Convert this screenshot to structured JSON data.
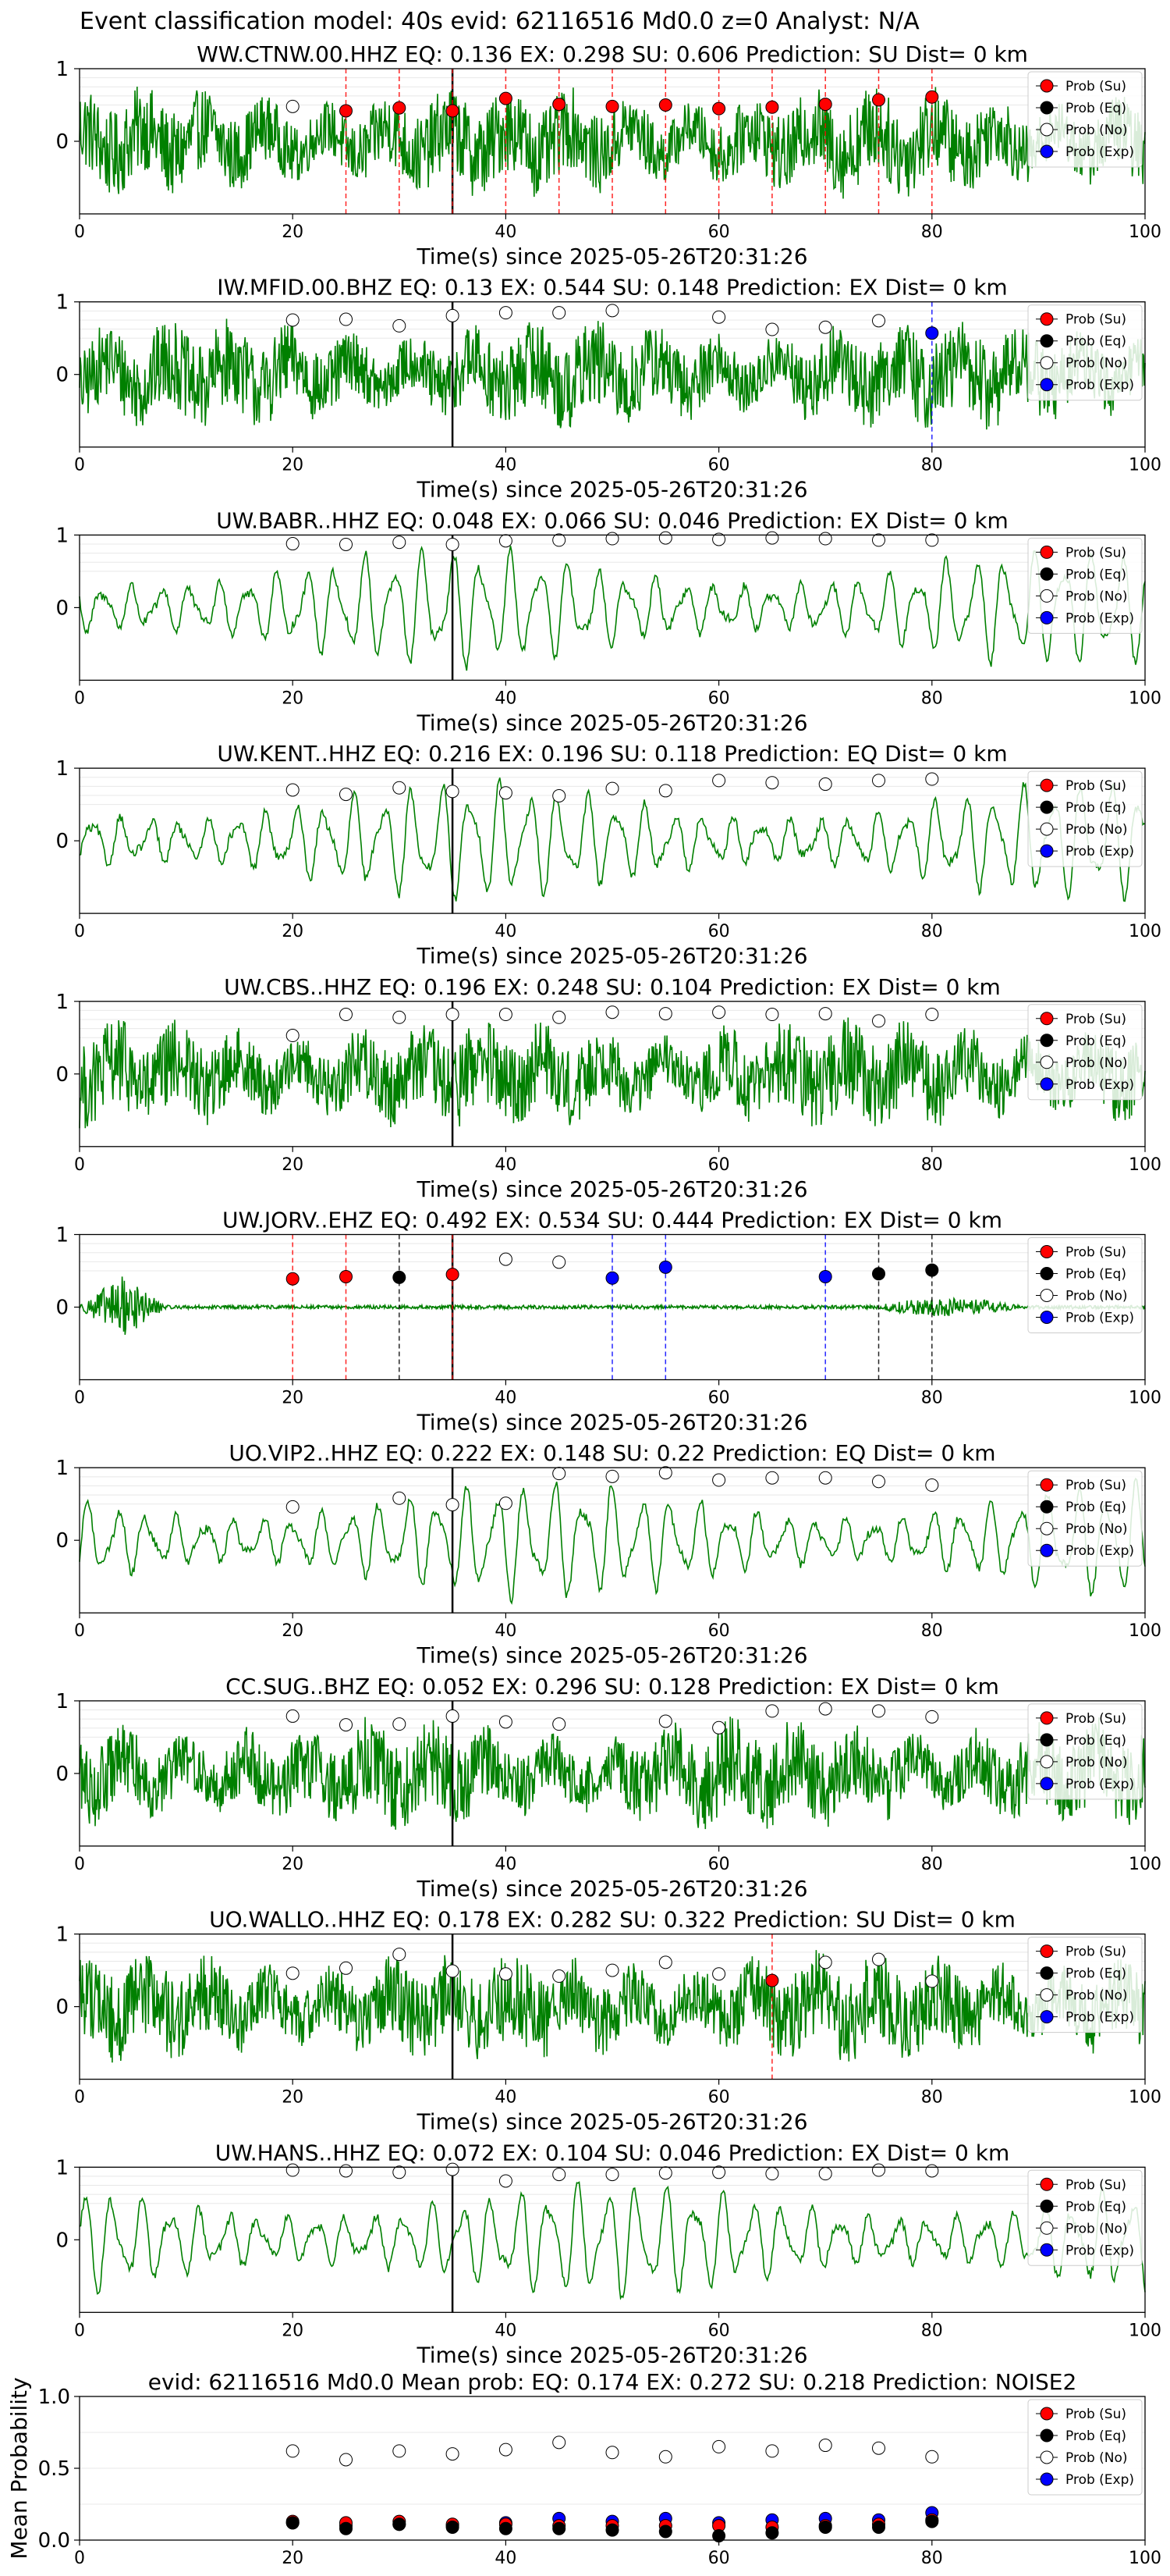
{
  "figure": {
    "suptitle": "Event classification model: 40s evid: 62116516 Md0.0 z=0 Analyst: N/A"
  },
  "legend_labels": [
    "Prob (Su)",
    "Prob (Eq)",
    "Prob (No)",
    "Prob (Exp)"
  ],
  "colors": {
    "waveform": "#008000",
    "su": "#ff0000",
    "eq": "#000000",
    "no": "#ffffff",
    "exp": "#0000ff",
    "su_line": "#ff0000",
    "eq_line": "#000000",
    "exp_line": "#0000ff"
  },
  "chart_data": [
    {
      "type": "line",
      "title": "WW.CTNW.00.HHZ   EQ: 0.136  EX: 0.298  SU: 0.606   Prediction: SU    Dist= 0 km",
      "xlabel": "Time(s) since 2025-05-26T20:31:26",
      "xlim": [
        0,
        100
      ],
      "xticks": [
        0,
        20,
        40,
        60,
        80,
        100
      ],
      "yticks": [
        0,
        1
      ],
      "ylim": [
        -1,
        1
      ],
      "grid": "y",
      "legend": "top-right",
      "pick_time": 35,
      "waveform_style": "noisy",
      "points": [
        {
          "t": 20,
          "cls": "no",
          "p": 0.48
        },
        {
          "t": 25,
          "cls": "su",
          "p": 0.42
        },
        {
          "t": 30,
          "cls": "su",
          "p": 0.46
        },
        {
          "t": 35,
          "cls": "su",
          "p": 0.42
        },
        {
          "t": 40,
          "cls": "su",
          "p": 0.59
        },
        {
          "t": 45,
          "cls": "su",
          "p": 0.51
        },
        {
          "t": 50,
          "cls": "su",
          "p": 0.48
        },
        {
          "t": 55,
          "cls": "su",
          "p": 0.5
        },
        {
          "t": 60,
          "cls": "su",
          "p": 0.45
        },
        {
          "t": 65,
          "cls": "su",
          "p": 0.47
        },
        {
          "t": 70,
          "cls": "su",
          "p": 0.51
        },
        {
          "t": 75,
          "cls": "su",
          "p": 0.57
        },
        {
          "t": 80,
          "cls": "su",
          "p": 0.61
        }
      ]
    },
    {
      "type": "line",
      "title": "IW.MFID.00.BHZ   EQ: 0.13  EX: 0.544  SU: 0.148   Prediction: EX    Dist= 0 km",
      "xlabel": "Time(s) since 2025-05-26T20:31:26",
      "xlim": [
        0,
        100
      ],
      "xticks": [
        0,
        20,
        40,
        60,
        80,
        100
      ],
      "yticks": [
        0,
        1
      ],
      "ylim": [
        -1,
        1
      ],
      "grid": "y",
      "legend": "top-right",
      "pick_time": 35,
      "waveform_style": "noisy",
      "points": [
        {
          "t": 20,
          "cls": "no",
          "p": 0.75
        },
        {
          "t": 25,
          "cls": "no",
          "p": 0.76
        },
        {
          "t": 30,
          "cls": "no",
          "p": 0.67
        },
        {
          "t": 35,
          "cls": "no",
          "p": 0.81
        },
        {
          "t": 40,
          "cls": "no",
          "p": 0.85
        },
        {
          "t": 45,
          "cls": "no",
          "p": 0.85
        },
        {
          "t": 50,
          "cls": "no",
          "p": 0.88
        },
        {
          "t": 60,
          "cls": "no",
          "p": 0.79
        },
        {
          "t": 65,
          "cls": "no",
          "p": 0.62
        },
        {
          "t": 70,
          "cls": "no",
          "p": 0.65
        },
        {
          "t": 75,
          "cls": "no",
          "p": 0.74
        },
        {
          "t": 80,
          "cls": "exp",
          "p": 0.57
        }
      ]
    },
    {
      "type": "line",
      "title": "UW.BABR..HHZ   EQ: 0.048  EX: 0.066  SU: 0.046   Prediction: EX    Dist= 0 km",
      "xlabel": "Time(s) since 2025-05-26T20:31:26",
      "xlim": [
        0,
        100
      ],
      "xticks": [
        0,
        20,
        40,
        60,
        80,
        100
      ],
      "yticks": [
        0,
        1
      ],
      "ylim": [
        -1,
        1
      ],
      "grid": "y",
      "legend": "top-right",
      "pick_time": 35,
      "waveform_style": "smooth",
      "points": [
        {
          "t": 20,
          "cls": "no",
          "p": 0.88
        },
        {
          "t": 25,
          "cls": "no",
          "p": 0.87
        },
        {
          "t": 30,
          "cls": "no",
          "p": 0.9
        },
        {
          "t": 35,
          "cls": "no",
          "p": 0.87
        },
        {
          "t": 40,
          "cls": "no",
          "p": 0.92
        },
        {
          "t": 45,
          "cls": "no",
          "p": 0.93
        },
        {
          "t": 50,
          "cls": "no",
          "p": 0.95
        },
        {
          "t": 55,
          "cls": "no",
          "p": 0.96
        },
        {
          "t": 60,
          "cls": "no",
          "p": 0.94
        },
        {
          "t": 65,
          "cls": "no",
          "p": 0.96
        },
        {
          "t": 70,
          "cls": "no",
          "p": 0.95
        },
        {
          "t": 75,
          "cls": "no",
          "p": 0.93
        },
        {
          "t": 80,
          "cls": "no",
          "p": 0.93
        }
      ]
    },
    {
      "type": "line",
      "title": "UW.KENT..HHZ   EQ: 0.216  EX: 0.196  SU: 0.118   Prediction: EQ    Dist= 0 km",
      "xlabel": "Time(s) since 2025-05-26T20:31:26",
      "xlim": [
        0,
        100
      ],
      "xticks": [
        0,
        20,
        40,
        60,
        80,
        100
      ],
      "yticks": [
        0,
        1
      ],
      "ylim": [
        -1,
        1
      ],
      "grid": "y",
      "legend": "top-right",
      "pick_time": 35,
      "waveform_style": "smooth",
      "points": [
        {
          "t": 20,
          "cls": "no",
          "p": 0.7
        },
        {
          "t": 25,
          "cls": "no",
          "p": 0.64
        },
        {
          "t": 30,
          "cls": "no",
          "p": 0.73
        },
        {
          "t": 35,
          "cls": "no",
          "p": 0.68
        },
        {
          "t": 40,
          "cls": "no",
          "p": 0.66
        },
        {
          "t": 45,
          "cls": "no",
          "p": 0.62
        },
        {
          "t": 50,
          "cls": "no",
          "p": 0.72
        },
        {
          "t": 55,
          "cls": "no",
          "p": 0.69
        },
        {
          "t": 60,
          "cls": "no",
          "p": 0.83
        },
        {
          "t": 65,
          "cls": "no",
          "p": 0.8
        },
        {
          "t": 70,
          "cls": "no",
          "p": 0.78
        },
        {
          "t": 75,
          "cls": "no",
          "p": 0.83
        },
        {
          "t": 80,
          "cls": "no",
          "p": 0.85
        }
      ]
    },
    {
      "type": "line",
      "title": "UW.CBS..HHZ   EQ: 0.196  EX: 0.248  SU: 0.104   Prediction: EX    Dist= 0 km",
      "xlabel": "Time(s) since 2025-05-26T20:31:26",
      "xlim": [
        0,
        100
      ],
      "xticks": [
        0,
        20,
        40,
        60,
        80,
        100
      ],
      "yticks": [
        0,
        1
      ],
      "ylim": [
        -1,
        1
      ],
      "grid": "y",
      "legend": "top-right",
      "pick_time": 35,
      "waveform_style": "noisy",
      "points": [
        {
          "t": 20,
          "cls": "no",
          "p": 0.53
        },
        {
          "t": 25,
          "cls": "no",
          "p": 0.82
        },
        {
          "t": 30,
          "cls": "no",
          "p": 0.78
        },
        {
          "t": 35,
          "cls": "no",
          "p": 0.82
        },
        {
          "t": 40,
          "cls": "no",
          "p": 0.82
        },
        {
          "t": 45,
          "cls": "no",
          "p": 0.78
        },
        {
          "t": 50,
          "cls": "no",
          "p": 0.85
        },
        {
          "t": 55,
          "cls": "no",
          "p": 0.83
        },
        {
          "t": 60,
          "cls": "no",
          "p": 0.85
        },
        {
          "t": 65,
          "cls": "no",
          "p": 0.82
        },
        {
          "t": 70,
          "cls": "no",
          "p": 0.83
        },
        {
          "t": 75,
          "cls": "no",
          "p": 0.73
        },
        {
          "t": 80,
          "cls": "no",
          "p": 0.82
        }
      ]
    },
    {
      "type": "line",
      "title": "UW.JORV..EHZ   EQ: 0.492  EX: 0.534  SU: 0.444   Prediction: EX    Dist= 0 km",
      "xlabel": "Time(s) since 2025-05-26T20:31:26",
      "xlim": [
        0,
        100
      ],
      "xticks": [
        0,
        20,
        40,
        60,
        80,
        100
      ],
      "yticks": [
        0,
        1
      ],
      "ylim": [
        -1,
        1
      ],
      "grid": "y",
      "legend": "top-right",
      "pick_time": 35,
      "waveform_style": "quiet",
      "points": [
        {
          "t": 20,
          "cls": "su",
          "p": 0.39
        },
        {
          "t": 25,
          "cls": "su",
          "p": 0.42
        },
        {
          "t": 30,
          "cls": "eq",
          "p": 0.41
        },
        {
          "t": 35,
          "cls": "su",
          "p": 0.45
        },
        {
          "t": 40,
          "cls": "no",
          "p": 0.66
        },
        {
          "t": 45,
          "cls": "no",
          "p": 0.62
        },
        {
          "t": 50,
          "cls": "exp",
          "p": 0.4
        },
        {
          "t": 55,
          "cls": "exp",
          "p": 0.55
        },
        {
          "t": 70,
          "cls": "exp",
          "p": 0.42
        },
        {
          "t": 75,
          "cls": "eq",
          "p": 0.46
        },
        {
          "t": 80,
          "cls": "eq",
          "p": 0.51
        }
      ]
    },
    {
      "type": "line",
      "title": "UO.VIP2..HHZ   EQ: 0.222  EX: 0.148  SU: 0.22   Prediction: EQ    Dist= 0 km",
      "xlabel": "Time(s) since 2025-05-26T20:31:26",
      "xlim": [
        0,
        100
      ],
      "xticks": [
        0,
        20,
        40,
        60,
        80,
        100
      ],
      "yticks": [
        0,
        1
      ],
      "ylim": [
        -1,
        1
      ],
      "grid": "y",
      "legend": "top-right",
      "pick_time": 35,
      "waveform_style": "smooth",
      "points": [
        {
          "t": 20,
          "cls": "no",
          "p": 0.46
        },
        {
          "t": 30,
          "cls": "no",
          "p": 0.58
        },
        {
          "t": 35,
          "cls": "no",
          "p": 0.49
        },
        {
          "t": 40,
          "cls": "no",
          "p": 0.51
        },
        {
          "t": 45,
          "cls": "no",
          "p": 0.92
        },
        {
          "t": 50,
          "cls": "no",
          "p": 0.88
        },
        {
          "t": 55,
          "cls": "no",
          "p": 0.93
        },
        {
          "t": 60,
          "cls": "no",
          "p": 0.83
        },
        {
          "t": 65,
          "cls": "no",
          "p": 0.86
        },
        {
          "t": 70,
          "cls": "no",
          "p": 0.86
        },
        {
          "t": 75,
          "cls": "no",
          "p": 0.81
        },
        {
          "t": 80,
          "cls": "no",
          "p": 0.76
        }
      ]
    },
    {
      "type": "line",
      "title": "CC.SUG..BHZ   EQ: 0.052  EX: 0.296  SU: 0.128   Prediction: EX    Dist= 0 km",
      "xlabel": "Time(s) since 2025-05-26T20:31:26",
      "xlim": [
        0,
        100
      ],
      "xticks": [
        0,
        20,
        40,
        60,
        80,
        100
      ],
      "yticks": [
        0,
        1
      ],
      "ylim": [
        -1,
        1
      ],
      "grid": "y",
      "legend": "top-right",
      "pick_time": 35,
      "waveform_style": "noisy",
      "points": [
        {
          "t": 20,
          "cls": "no",
          "p": 0.79
        },
        {
          "t": 25,
          "cls": "no",
          "p": 0.67
        },
        {
          "t": 30,
          "cls": "no",
          "p": 0.68
        },
        {
          "t": 35,
          "cls": "no",
          "p": 0.79
        },
        {
          "t": 40,
          "cls": "no",
          "p": 0.71
        },
        {
          "t": 45,
          "cls": "no",
          "p": 0.68
        },
        {
          "t": 55,
          "cls": "no",
          "p": 0.72
        },
        {
          "t": 60,
          "cls": "no",
          "p": 0.63
        },
        {
          "t": 65,
          "cls": "no",
          "p": 0.86
        },
        {
          "t": 70,
          "cls": "no",
          "p": 0.89
        },
        {
          "t": 75,
          "cls": "no",
          "p": 0.86
        },
        {
          "t": 80,
          "cls": "no",
          "p": 0.78
        }
      ]
    },
    {
      "type": "line",
      "title": "UO.WALLO..HHZ   EQ: 0.178  EX: 0.282  SU: 0.322   Prediction: SU    Dist= 0 km",
      "xlabel": "Time(s) since 2025-05-26T20:31:26",
      "xlim": [
        0,
        100
      ],
      "xticks": [
        0,
        20,
        40,
        60,
        80,
        100
      ],
      "yticks": [
        0,
        1
      ],
      "ylim": [
        -1,
        1
      ],
      "grid": "y",
      "legend": "top-right",
      "pick_time": 35,
      "waveform_style": "noisy",
      "points": [
        {
          "t": 20,
          "cls": "no",
          "p": 0.46
        },
        {
          "t": 25,
          "cls": "no",
          "p": 0.53
        },
        {
          "t": 30,
          "cls": "no",
          "p": 0.72
        },
        {
          "t": 35,
          "cls": "no",
          "p": 0.49
        },
        {
          "t": 40,
          "cls": "no",
          "p": 0.45
        },
        {
          "t": 45,
          "cls": "no",
          "p": 0.42
        },
        {
          "t": 50,
          "cls": "no",
          "p": 0.5
        },
        {
          "t": 55,
          "cls": "no",
          "p": 0.61
        },
        {
          "t": 60,
          "cls": "no",
          "p": 0.45
        },
        {
          "t": 65,
          "cls": "su",
          "p": 0.36
        },
        {
          "t": 70,
          "cls": "no",
          "p": 0.61
        },
        {
          "t": 75,
          "cls": "no",
          "p": 0.65
        },
        {
          "t": 80,
          "cls": "no",
          "p": 0.35
        }
      ]
    },
    {
      "type": "line",
      "title": "UW.HANS..HHZ   EQ: 0.072  EX: 0.104  SU: 0.046   Prediction: EX    Dist= 0 km",
      "xlabel": "Time(s) since 2025-05-26T20:31:26",
      "xlim": [
        0,
        100
      ],
      "xticks": [
        0,
        20,
        40,
        60,
        80,
        100
      ],
      "yticks": [
        0,
        1
      ],
      "ylim": [
        -1,
        1
      ],
      "grid": "y",
      "legend": "top-right",
      "pick_time": 35,
      "waveform_style": "smooth",
      "points": [
        {
          "t": 20,
          "cls": "no",
          "p": 0.96
        },
        {
          "t": 25,
          "cls": "no",
          "p": 0.95
        },
        {
          "t": 30,
          "cls": "no",
          "p": 0.93
        },
        {
          "t": 35,
          "cls": "no",
          "p": 0.97
        },
        {
          "t": 40,
          "cls": "no",
          "p": 0.81
        },
        {
          "t": 45,
          "cls": "no",
          "p": 0.9
        },
        {
          "t": 50,
          "cls": "no",
          "p": 0.9
        },
        {
          "t": 55,
          "cls": "no",
          "p": 0.92
        },
        {
          "t": 60,
          "cls": "no",
          "p": 0.93
        },
        {
          "t": 65,
          "cls": "no",
          "p": 0.91
        },
        {
          "t": 70,
          "cls": "no",
          "p": 0.91
        },
        {
          "t": 75,
          "cls": "no",
          "p": 0.96
        },
        {
          "t": 80,
          "cls": "no",
          "p": 0.95
        }
      ]
    },
    {
      "type": "scatter",
      "title": "evid: 62116516  Md0.0   Mean prob:   EQ: 0.174  EX: 0.272  SU: 0.218   Prediction: NOISE2",
      "xlabel": "",
      "ylabel": "Mean Probability",
      "xlim": [
        0,
        100
      ],
      "ylim": [
        0,
        1
      ],
      "xticks": [
        0,
        20,
        40,
        60,
        80,
        100
      ],
      "yticks": [
        0.0,
        0.5,
        1.0
      ],
      "ytick_labels": [
        "0.0",
        "0.5",
        "1.0"
      ],
      "grid": "y",
      "legend": "top-right",
      "x": [
        20,
        25,
        30,
        35,
        40,
        45,
        50,
        55,
        60,
        65,
        70,
        75,
        80
      ],
      "series": [
        {
          "cls": "no",
          "values": [
            0.62,
            0.56,
            0.62,
            0.6,
            0.63,
            0.68,
            0.61,
            0.58,
            0.65,
            0.62,
            0.66,
            0.64,
            0.58
          ]
        },
        {
          "cls": "exp",
          "values": [
            0.12,
            0.1,
            0.11,
            0.1,
            0.12,
            0.15,
            0.13,
            0.15,
            0.12,
            0.14,
            0.15,
            0.14,
            0.19
          ]
        },
        {
          "cls": "su",
          "values": [
            0.13,
            0.12,
            0.13,
            0.11,
            0.11,
            0.1,
            0.1,
            0.1,
            0.1,
            0.09,
            0.1,
            0.11,
            0.14
          ]
        },
        {
          "cls": "eq",
          "values": [
            0.12,
            0.08,
            0.11,
            0.09,
            0.08,
            0.08,
            0.07,
            0.06,
            0.03,
            0.05,
            0.09,
            0.09,
            0.13
          ]
        }
      ]
    }
  ]
}
